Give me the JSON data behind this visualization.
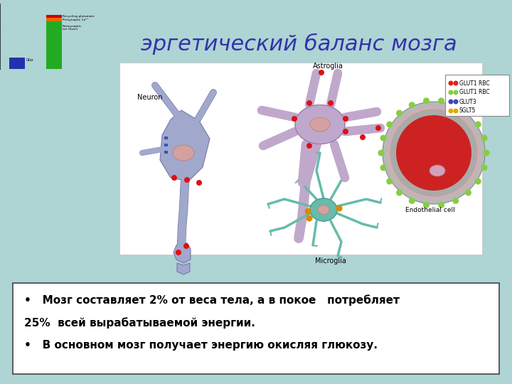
{
  "background_color": "#aed4d4",
  "title": "эргетический баланс мозга",
  "title_color": "#3333aa",
  "title_fontsize": 22,
  "bullet1": "•   Мозг составляет 2% от веса тела, а в покое   потребляет",
  "bullet1b": "25%  всей вырабатываемой энергии.",
  "bullet2": "•   В основном мозг получает энергию окисляя глюкозу.",
  "neuron_color": "#a0a8cc",
  "astro_color": "#c0a8cc",
  "micro_color": "#66bbaa",
  "nucleus_color": "#d4a0a0",
  "red_dot_color": "#dd1111",
  "blue_mark_color": "#3355bb",
  "orange_dot_color": "#dd8800",
  "endo_outer_color": "#aaaaaa",
  "endo_inner_color": "#cc2222",
  "green_dot_color": "#88cc44",
  "legend_labels": [
    "GLUT1 RBC",
    "GLUT1 RBC",
    "GLUT3",
    "SGLT5"
  ],
  "legend_colors": [
    "#dd2222",
    "#88cc44",
    "#4444bb",
    "#ddaa00"
  ]
}
